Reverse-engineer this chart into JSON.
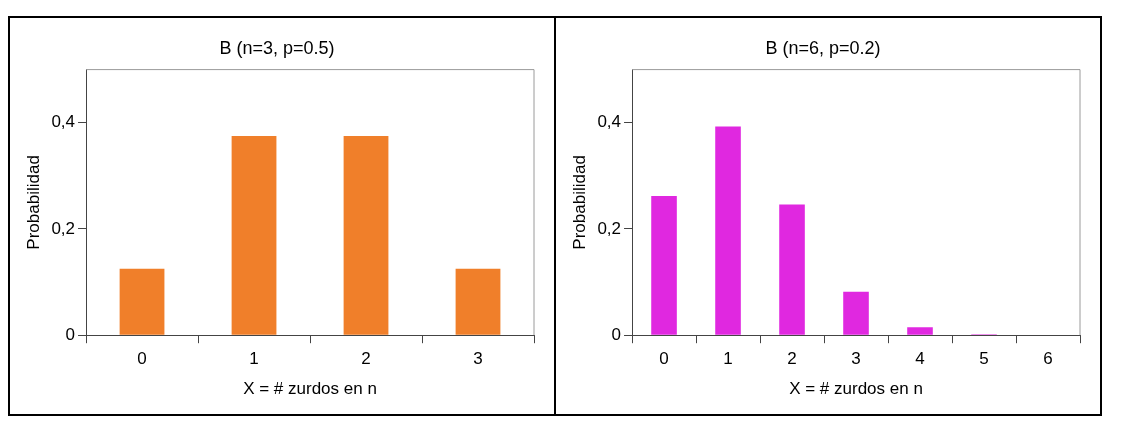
{
  "chart_data": [
    {
      "type": "bar",
      "title": "B (n=3, p=0.5)",
      "xlabel": "X = # zurdos en n",
      "ylabel": "Probabilidad",
      "categories": [
        "0",
        "1",
        "2",
        "3"
      ],
      "values": [
        0.125,
        0.375,
        0.375,
        0.125
      ],
      "color": "#f07f2a",
      "ylim": [
        0,
        0.5
      ],
      "yticks": [
        {
          "value": 0,
          "label": "0"
        },
        {
          "value": 0.2,
          "label": "0,2"
        },
        {
          "value": 0.4,
          "label": "0,4"
        }
      ],
      "grid": false,
      "legend": false
    },
    {
      "type": "bar",
      "title": "B (n=6, p=0.2)",
      "xlabel": "X = # zurdos en n",
      "ylabel": "Probabilidad",
      "categories": [
        "0",
        "1",
        "2",
        "3",
        "4",
        "5",
        "6"
      ],
      "values": [
        0.262,
        0.393,
        0.246,
        0.082,
        0.015,
        0.002,
        0
      ],
      "color": "#e028e0",
      "ylim": [
        0,
        0.5
      ],
      "yticks": [
        {
          "value": 0,
          "label": "0"
        },
        {
          "value": 0.2,
          "label": "0,2"
        },
        {
          "value": 0.4,
          "label": "0,4"
        }
      ],
      "grid": false,
      "legend": false
    }
  ]
}
